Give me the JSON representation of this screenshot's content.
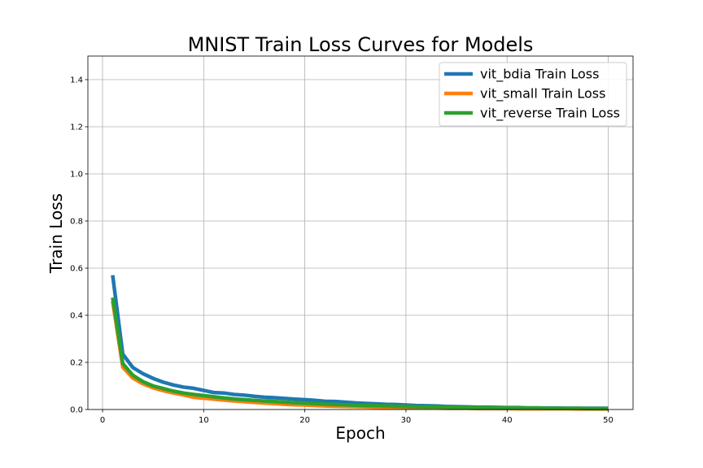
{
  "chart_data": {
    "type": "line",
    "title": "MNIST Train Loss Curves for Models",
    "xlabel": "Epoch",
    "ylabel": "Train Loss",
    "xlim": [
      -1.45,
      52.45
    ],
    "ylim": [
      0,
      1.5
    ],
    "xticks": [
      0,
      10,
      20,
      30,
      40,
      50
    ],
    "yticks": [
      0.0,
      0.2,
      0.4,
      0.6,
      0.8,
      1.0,
      1.2,
      1.4
    ],
    "xtick_labels": [
      "0",
      "10",
      "20",
      "30",
      "40",
      "50"
    ],
    "ytick_labels": [
      "0.0",
      "0.2",
      "0.4",
      "0.6",
      "0.8",
      "1.0",
      "1.2",
      "1.4"
    ],
    "grid": true,
    "legend_position": "top-right",
    "x": [
      1,
      2,
      3,
      4,
      5,
      6,
      7,
      8,
      9,
      10,
      11,
      12,
      13,
      14,
      15,
      16,
      17,
      18,
      19,
      20,
      21,
      22,
      23,
      24,
      25,
      26,
      27,
      28,
      29,
      30,
      31,
      32,
      33,
      34,
      35,
      36,
      37,
      38,
      39,
      40,
      41,
      42,
      43,
      44,
      45,
      46,
      47,
      48,
      49,
      50
    ],
    "series": [
      {
        "name": "vit_bdia Train Loss",
        "color": "#1f77b4",
        "values": [
          0.57,
          0.235,
          0.178,
          0.152,
          0.132,
          0.116,
          0.104,
          0.095,
          0.09,
          0.081,
          0.072,
          0.07,
          0.064,
          0.061,
          0.056,
          0.052,
          0.05,
          0.047,
          0.044,
          0.042,
          0.039,
          0.035,
          0.034,
          0.031,
          0.028,
          0.026,
          0.024,
          0.022,
          0.021,
          0.019,
          0.017,
          0.016,
          0.015,
          0.013,
          0.012,
          0.011,
          0.01,
          0.01,
          0.009,
          0.008,
          0.008,
          0.007,
          0.007,
          0.006,
          0.006,
          0.005,
          0.005,
          0.005,
          0.005,
          0.005
        ]
      },
      {
        "name": "vit_small Train Loss",
        "color": "#ff7f0e",
        "values": [
          0.46,
          0.18,
          0.133,
          0.109,
          0.092,
          0.08,
          0.07,
          0.062,
          0.052,
          0.048,
          0.044,
          0.04,
          0.036,
          0.033,
          0.03,
          0.027,
          0.025,
          0.022,
          0.02,
          0.019,
          0.017,
          0.015,
          0.014,
          0.013,
          0.012,
          0.011,
          0.01,
          0.009,
          0.008,
          0.007,
          0.007,
          0.006,
          0.006,
          0.005,
          0.005,
          0.005,
          0.004,
          0.004,
          0.004,
          0.004,
          0.003,
          0.003,
          0.003,
          0.003,
          0.003,
          0.003,
          0.002,
          0.002,
          0.002,
          0.002
        ]
      },
      {
        "name": "vit_reverse Train Loss",
        "color": "#2ca02c",
        "values": [
          0.475,
          0.195,
          0.145,
          0.118,
          0.1,
          0.089,
          0.078,
          0.07,
          0.064,
          0.059,
          0.054,
          0.049,
          0.045,
          0.042,
          0.039,
          0.036,
          0.034,
          0.031,
          0.029,
          0.027,
          0.025,
          0.023,
          0.021,
          0.02,
          0.018,
          0.017,
          0.016,
          0.015,
          0.014,
          0.013,
          0.012,
          0.011,
          0.011,
          0.01,
          0.009,
          0.009,
          0.008,
          0.008,
          0.007,
          0.007,
          0.006,
          0.006,
          0.006,
          0.005,
          0.005,
          0.005,
          0.005,
          0.004,
          0.004,
          0.004
        ]
      }
    ]
  }
}
